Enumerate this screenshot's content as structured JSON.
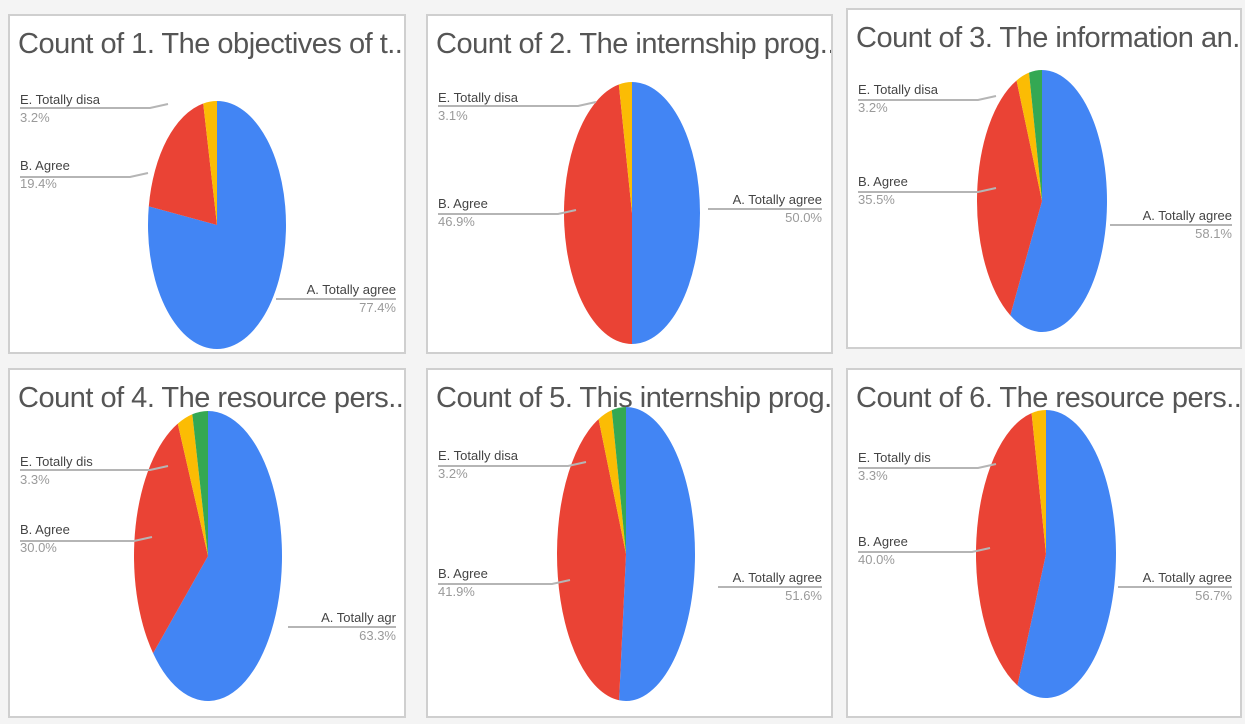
{
  "colors": {
    "A. Totally agree": "#4285f4",
    "B. Agree": "#ea4335",
    "E. Totally disagree": "#fbbc04",
    "other": "#34a853"
  },
  "chart_data": [
    {
      "type": "pie",
      "title": "Count of 1. The objectives of t...",
      "slices": [
        {
          "label": "A. Totally agree",
          "display_label": "A. Totally agree",
          "percent_text": "77.4%",
          "value": 77.4
        },
        {
          "label": "B. Agree",
          "display_label": "B. Agree",
          "percent_text": "19.4%",
          "value": 19.4
        },
        {
          "label": "E. Totally disagree",
          "display_label": "E. Totally disa",
          "percent_text": "3.2%",
          "value": 3.2
        }
      ]
    },
    {
      "type": "pie",
      "title": "Count of 2. The internship prog...",
      "slices": [
        {
          "label": "A. Totally agree",
          "display_label": "A. Totally agree",
          "percent_text": "50.0%",
          "value": 50.0
        },
        {
          "label": "B. Agree",
          "display_label": "B. Agree",
          "percent_text": "46.9%",
          "value": 46.9
        },
        {
          "label": "E. Totally disagree",
          "display_label": "E. Totally disa",
          "percent_text": "3.1%",
          "value": 3.1
        }
      ]
    },
    {
      "type": "pie",
      "title": "Count of 3. The information an...",
      "slices": [
        {
          "label": "A. Totally agree",
          "display_label": "A. Totally agree",
          "percent_text": "58.1%",
          "value": 58.1
        },
        {
          "label": "B. Agree",
          "display_label": "B. Agree",
          "percent_text": "35.5%",
          "value": 35.5
        },
        {
          "label": "E. Totally disagree",
          "display_label": "E. Totally disa",
          "percent_text": "3.2%",
          "value": 3.2
        },
        {
          "label": "other",
          "display_label": "",
          "percent_text": "",
          "value": 3.2
        }
      ]
    },
    {
      "type": "pie",
      "title": "Count of 4. The resource pers...",
      "slices": [
        {
          "label": "A. Totally agree",
          "display_label": "A. Totally agr",
          "percent_text": "63.3%",
          "value": 63.3
        },
        {
          "label": "B. Agree",
          "display_label": "B. Agree",
          "percent_text": "30.0%",
          "value": 30.0
        },
        {
          "label": "E. Totally disagree",
          "display_label": "E. Totally dis",
          "percent_text": "3.3%",
          "value": 3.3
        },
        {
          "label": "other",
          "display_label": "",
          "percent_text": "",
          "value": 3.4
        }
      ]
    },
    {
      "type": "pie",
      "title": "Count of 5. This internship prog...",
      "slices": [
        {
          "label": "A. Totally agree",
          "display_label": "A. Totally agree",
          "percent_text": "51.6%",
          "value": 51.6
        },
        {
          "label": "B. Agree",
          "display_label": "B. Agree",
          "percent_text": "41.9%",
          "value": 41.9
        },
        {
          "label": "E. Totally disagree",
          "display_label": "E. Totally disa",
          "percent_text": "3.2%",
          "value": 3.2
        },
        {
          "label": "other",
          "display_label": "",
          "percent_text": "",
          "value": 3.3
        }
      ]
    },
    {
      "type": "pie",
      "title": "Count of 6. The resource pers...",
      "slices": [
        {
          "label": "A. Totally agree",
          "display_label": "A. Totally agree",
          "percent_text": "56.7%",
          "value": 56.7
        },
        {
          "label": "B. Agree",
          "display_label": "B. Agree",
          "percent_text": "40.0%",
          "value": 40.0
        },
        {
          "label": "E. Totally disagree",
          "display_label": "E. Totally dis",
          "percent_text": "3.3%",
          "value": 3.3
        }
      ]
    }
  ]
}
